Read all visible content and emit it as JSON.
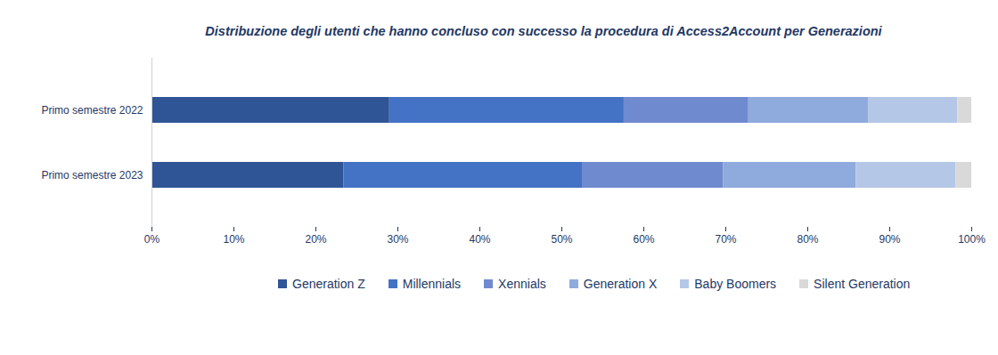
{
  "chart_data": {
    "type": "bar",
    "title": "Distribuzione degli utenti che hanno concluso con successo la procedura di Access2Account per Generazioni",
    "orientation": "horizontal",
    "stacked": true,
    "legend": "bottom",
    "grid": false,
    "categories": [
      "Primo semestre 2022",
      "Primo semestre 2023"
    ],
    "series": [
      {
        "name": "Generation Z",
        "color": "#2f5597",
        "values": [
          29.0,
          23.4
        ]
      },
      {
        "name": "Millennials",
        "color": "#4472c4",
        "values": [
          28.6,
          29.1
        ]
      },
      {
        "name": "Xennials",
        "color": "#6f8acf",
        "values": [
          15.2,
          17.2
        ]
      },
      {
        "name": "Generation X",
        "color": "#8faadc",
        "values": [
          14.6,
          16.2
        ]
      },
      {
        "name": "Baby Boomers",
        "color": "#b4c7e7",
        "values": [
          10.9,
          12.2
        ]
      },
      {
        "name": "Silent Generation",
        "color": "#d9d9d9",
        "values": [
          1.7,
          1.9
        ]
      }
    ],
    "xlim": [
      0,
      100
    ],
    "xticks": [
      {
        "value": 0,
        "label": "0%"
      },
      {
        "value": 10,
        "label": "10%"
      },
      {
        "value": 20,
        "label": "20%"
      },
      {
        "value": 30,
        "label": "30%"
      },
      {
        "value": 40,
        "label": "40%"
      },
      {
        "value": 50,
        "label": "50%"
      },
      {
        "value": 60,
        "label": "60%"
      },
      {
        "value": 70,
        "label": "70%"
      },
      {
        "value": 80,
        "label": "80%"
      },
      {
        "value": 90,
        "label": "90%"
      },
      {
        "value": 100,
        "label": "100%"
      }
    ]
  }
}
